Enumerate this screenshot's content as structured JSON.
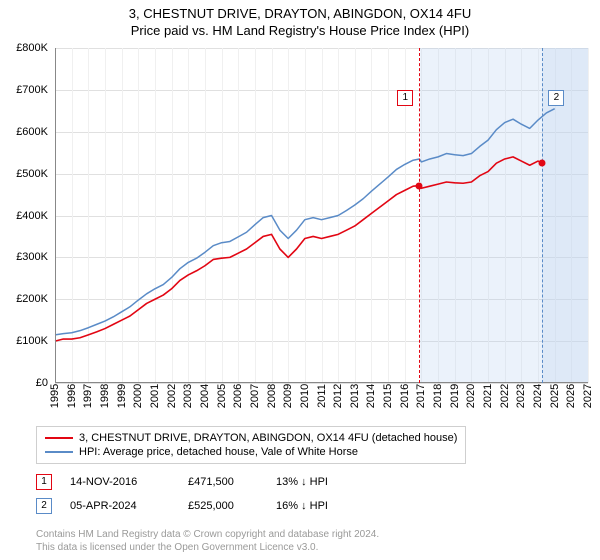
{
  "title": "3, CHESTNUT DRIVE, DRAYTON, ABINGDON, OX14 4FU",
  "subtitle": "Price paid vs. HM Land Registry's House Price Index (HPI)",
  "chart": {
    "type": "line",
    "background_color": "#ffffff",
    "grid_color_h": "#e0e0e0",
    "grid_color_v": "#f0f0f0",
    "axis_color": "#888888",
    "x_axis": {
      "min_year": 1995,
      "max_year": 2027,
      "tick_step": 1,
      "label_fontsize": 11,
      "label_rotation_deg": -90
    },
    "y_axis": {
      "min": 0,
      "max": 800000,
      "tick_values": [
        0,
        100000,
        200000,
        300000,
        400000,
        500000,
        600000,
        700000,
        800000
      ],
      "tick_labels": [
        "£0",
        "£100K",
        "£200K",
        "£300K",
        "£400K",
        "£500K",
        "£600K",
        "£700K",
        "£800K"
      ],
      "label_fontsize": 11
    },
    "forecast_band": {
      "color": "#aeccf0",
      "opacity": 0.25,
      "start_year": 2016.9,
      "end_year": 2027.0
    },
    "shade_recent": {
      "color": "#c5d9f2",
      "opacity": 0.35,
      "start_year": 2024.26,
      "end_year": 2027.0
    },
    "series": [
      {
        "id": "price_paid",
        "label": "3, CHESTNUT DRIVE, DRAYTON, ABINGDON, OX14 4FU (detached house)",
        "color": "#e20613",
        "line_width": 1.6,
        "points": [
          [
            1995.0,
            100000
          ],
          [
            1995.5,
            105000
          ],
          [
            1996.0,
            105000
          ],
          [
            1996.5,
            108000
          ],
          [
            1997.0,
            115000
          ],
          [
            1997.5,
            122000
          ],
          [
            1998.0,
            130000
          ],
          [
            1998.5,
            140000
          ],
          [
            1999.0,
            150000
          ],
          [
            1999.5,
            160000
          ],
          [
            2000.0,
            175000
          ],
          [
            2000.5,
            190000
          ],
          [
            2001.0,
            200000
          ],
          [
            2001.5,
            210000
          ],
          [
            2002.0,
            225000
          ],
          [
            2002.5,
            245000
          ],
          [
            2003.0,
            258000
          ],
          [
            2003.5,
            268000
          ],
          [
            2004.0,
            280000
          ],
          [
            2004.5,
            295000
          ],
          [
            2005.0,
            298000
          ],
          [
            2005.5,
            300000
          ],
          [
            2006.0,
            310000
          ],
          [
            2006.5,
            320000
          ],
          [
            2007.0,
            335000
          ],
          [
            2007.5,
            350000
          ],
          [
            2008.0,
            355000
          ],
          [
            2008.5,
            320000
          ],
          [
            2009.0,
            300000
          ],
          [
            2009.5,
            320000
          ],
          [
            2010.0,
            345000
          ],
          [
            2010.5,
            350000
          ],
          [
            2011.0,
            345000
          ],
          [
            2011.5,
            350000
          ],
          [
            2012.0,
            355000
          ],
          [
            2012.5,
            365000
          ],
          [
            2013.0,
            375000
          ],
          [
            2013.5,
            390000
          ],
          [
            2014.0,
            405000
          ],
          [
            2014.5,
            420000
          ],
          [
            2015.0,
            435000
          ],
          [
            2015.5,
            450000
          ],
          [
            2016.0,
            460000
          ],
          [
            2016.5,
            470000
          ],
          [
            2016.87,
            471500
          ],
          [
            2017.0,
            465000
          ],
          [
            2017.5,
            470000
          ],
          [
            2018.0,
            475000
          ],
          [
            2018.5,
            480000
          ],
          [
            2019.0,
            478000
          ],
          [
            2019.5,
            477000
          ],
          [
            2020.0,
            480000
          ],
          [
            2020.5,
            495000
          ],
          [
            2021.0,
            505000
          ],
          [
            2021.5,
            525000
          ],
          [
            2022.0,
            535000
          ],
          [
            2022.5,
            540000
          ],
          [
            2023.0,
            530000
          ],
          [
            2023.5,
            520000
          ],
          [
            2024.0,
            530000
          ],
          [
            2024.26,
            525000
          ]
        ]
      },
      {
        "id": "hpi",
        "label": "HPI: Average price, detached house, Vale of White Horse",
        "color": "#5a8bc7",
        "line_width": 1.5,
        "points": [
          [
            1995.0,
            115000
          ],
          [
            1995.5,
            118000
          ],
          [
            1996.0,
            120000
          ],
          [
            1996.5,
            125000
          ],
          [
            1997.0,
            132000
          ],
          [
            1997.5,
            140000
          ],
          [
            1998.0,
            148000
          ],
          [
            1998.5,
            158000
          ],
          [
            1999.0,
            170000
          ],
          [
            1999.5,
            182000
          ],
          [
            2000.0,
            198000
          ],
          [
            2000.5,
            213000
          ],
          [
            2001.0,
            225000
          ],
          [
            2001.5,
            235000
          ],
          [
            2002.0,
            252000
          ],
          [
            2002.5,
            273000
          ],
          [
            2003.0,
            288000
          ],
          [
            2003.5,
            298000
          ],
          [
            2004.0,
            312000
          ],
          [
            2004.5,
            328000
          ],
          [
            2005.0,
            335000
          ],
          [
            2005.5,
            338000
          ],
          [
            2006.0,
            349000
          ],
          [
            2006.5,
            360000
          ],
          [
            2007.0,
            378000
          ],
          [
            2007.5,
            395000
          ],
          [
            2008.0,
            400000
          ],
          [
            2008.5,
            365000
          ],
          [
            2009.0,
            345000
          ],
          [
            2009.5,
            365000
          ],
          [
            2010.0,
            390000
          ],
          [
            2010.5,
            395000
          ],
          [
            2011.0,
            390000
          ],
          [
            2011.5,
            395000
          ],
          [
            2012.0,
            400000
          ],
          [
            2012.5,
            412000
          ],
          [
            2013.0,
            425000
          ],
          [
            2013.5,
            440000
          ],
          [
            2014.0,
            458000
          ],
          [
            2014.5,
            475000
          ],
          [
            2015.0,
            492000
          ],
          [
            2015.5,
            510000
          ],
          [
            2016.0,
            522000
          ],
          [
            2016.5,
            532000
          ],
          [
            2016.87,
            535000
          ],
          [
            2017.0,
            528000
          ],
          [
            2017.5,
            535000
          ],
          [
            2018.0,
            540000
          ],
          [
            2018.5,
            548000
          ],
          [
            2019.0,
            545000
          ],
          [
            2019.5,
            543000
          ],
          [
            2020.0,
            548000
          ],
          [
            2020.5,
            565000
          ],
          [
            2021.0,
            580000
          ],
          [
            2021.5,
            605000
          ],
          [
            2022.0,
            622000
          ],
          [
            2022.5,
            630000
          ],
          [
            2023.0,
            618000
          ],
          [
            2023.5,
            608000
          ],
          [
            2024.0,
            628000
          ],
          [
            2024.5,
            645000
          ],
          [
            2025.0,
            655000
          ]
        ]
      }
    ],
    "reference_lines": [
      {
        "id": 1,
        "year": 2016.87,
        "color": "#e20613",
        "badge_text": "1",
        "badge_y": 700000
      },
      {
        "id": 2,
        "year": 2024.26,
        "color": "#5a8bc7",
        "badge_text": "2",
        "badge_y": 700000
      }
    ],
    "markers": [
      {
        "series": "price_paid",
        "year": 2016.87,
        "value": 471500,
        "color": "#e20613",
        "size": 7
      },
      {
        "series": "price_paid",
        "year": 2024.26,
        "value": 525000,
        "color": "#e20613",
        "size": 7
      }
    ],
    "legend_border_color": "#cfcfcf"
  },
  "legend_items": [
    {
      "color": "#e20613",
      "label": "3, CHESTNUT DRIVE, DRAYTON, ABINGDON, OX14 4FU (detached house)"
    },
    {
      "color": "#5a8bc7",
      "label": "HPI: Average price, detached house, Vale of White Horse"
    }
  ],
  "transactions": [
    {
      "badge": "1",
      "badge_color": "#e20613",
      "date": "14-NOV-2016",
      "price": "£471,500",
      "diff": "13% ↓ HPI"
    },
    {
      "badge": "2",
      "badge_color": "#5a8bc7",
      "date": "05-APR-2024",
      "price": "£525,000",
      "diff": "16% ↓ HPI"
    }
  ],
  "footer_line1": "Contains HM Land Registry data © Crown copyright and database right 2024.",
  "footer_line2": "This data is licensed under the Open Government Licence v3.0."
}
